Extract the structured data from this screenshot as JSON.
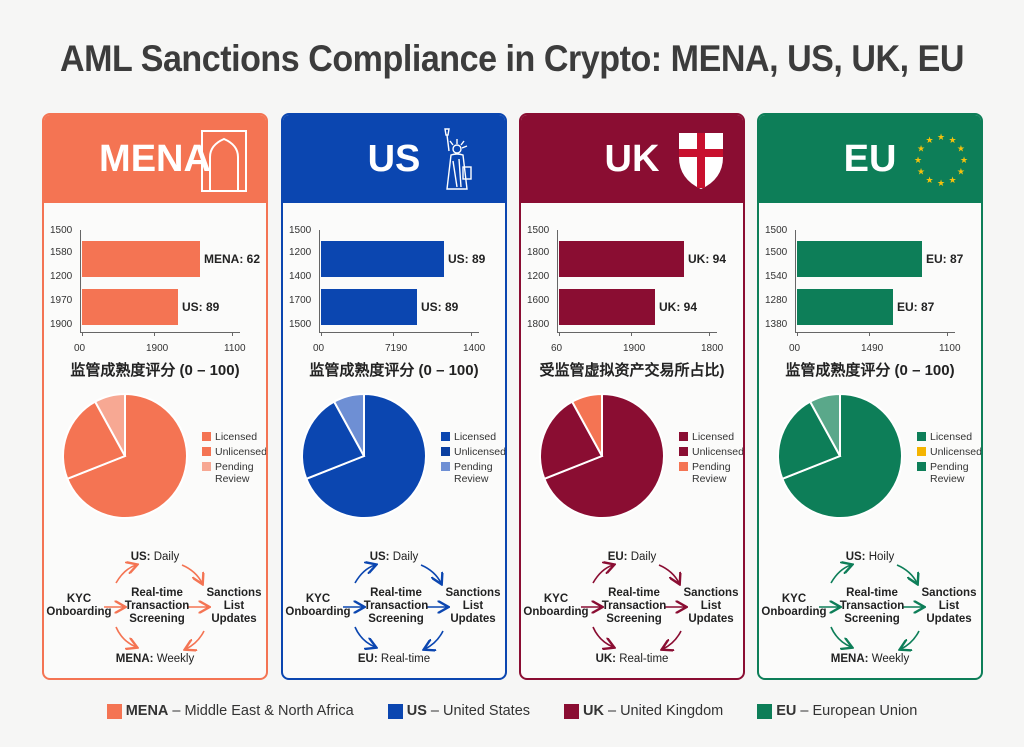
{
  "title": "AML Sanctions Compliance in Crypto: MENA, US, UK, EU",
  "colors": {
    "mena": "#f47453",
    "us": "#0b46b0",
    "uk": "#8a0d32",
    "eu": "#0d7e58"
  },
  "panels": [
    {
      "id": "mena",
      "name": "MENA",
      "icon": "arch-icon",
      "bar_chart": {
        "y_ticks": [
          "1500",
          "1580",
          "1200",
          "1970",
          "1900"
        ],
        "x_ticks": [
          "00",
          "1900",
          "1100"
        ],
        "bars": [
          {
            "label": "MENA: 62",
            "width_pct": 0.74
          },
          {
            "label": "US: 89",
            "width_pct": 0.6
          }
        ],
        "x_title": "监管成熟度评分 (0 – 100)"
      },
      "pie": {
        "legend": [
          "Licensed",
          "Unlicensed",
          "Pending Review"
        ],
        "legend_colors": [
          "#f47453",
          "#f47453",
          "#f7a893"
        ]
      },
      "flow": {
        "top_bold": "US:",
        "top_normal": "Daily",
        "left": "KYC Onboarding",
        "center": "Real-time Transaction Screening",
        "right": "Sanctions List Updates",
        "bottom_bold": "MENA:",
        "bottom_normal": "Weekly"
      }
    },
    {
      "id": "us",
      "name": "US",
      "icon": "statue-of-liberty-icon",
      "bar_chart": {
        "y_ticks": [
          "1500",
          "1200",
          "1400",
          "1700",
          "1500"
        ],
        "x_ticks": [
          "00",
          "7190",
          "1400"
        ],
        "bars": [
          {
            "label": "US: 89",
            "width_pct": 0.77
          },
          {
            "label": "US: 89",
            "width_pct": 0.6
          }
        ],
        "x_title": "监管成熟度评分 (0 – 100)"
      },
      "pie": {
        "legend": [
          "Licensed",
          "Unlicensed",
          "Pending Review"
        ],
        "legend_colors": [
          "#0b46b0",
          "#0b3fa0",
          "#6e8fd4"
        ]
      },
      "flow": {
        "top_bold": "US:",
        "top_normal": "Daily",
        "left": "KYC Onboarding",
        "center": "Real-time Transaction Screening",
        "right": "Sanctions List Updates",
        "bottom_bold": "EU:",
        "bottom_normal": "Real-time"
      }
    },
    {
      "id": "uk",
      "name": "UK",
      "icon": "st-george-shield-icon",
      "bar_chart": {
        "y_ticks": [
          "1500",
          "1800",
          "1200",
          "1600",
          "1800"
        ],
        "x_ticks": [
          "60",
          "1900",
          "1800"
        ],
        "bars": [
          {
            "label": "UK: 94",
            "width_pct": 0.78
          },
          {
            "label": "UK: 94",
            "width_pct": 0.6
          }
        ],
        "x_title": "受监管虚拟资产交易所占比)"
      },
      "pie": {
        "legend": [
          "Licensed",
          "Unlicensed",
          "Pending Review"
        ],
        "legend_colors": [
          "#8a0d32",
          "#8a0d32",
          "#f47453"
        ]
      },
      "flow": {
        "top_bold": "EU:",
        "top_normal": "Daily",
        "left": "KYC Onboarding",
        "center": "Real-time Transaction Screening",
        "right": "Sanctions List Updates",
        "bottom_bold": "UK:",
        "bottom_normal": "Real-time"
      }
    },
    {
      "id": "eu",
      "name": "EU",
      "icon": "eu-stars-icon",
      "bar_chart": {
        "y_ticks": [
          "1500",
          "1500",
          "1540",
          "1280",
          "1380"
        ],
        "x_ticks": [
          "00",
          "1490",
          "1100"
        ],
        "bars": [
          {
            "label": "EU: 87",
            "width_pct": 0.78
          },
          {
            "label": "EU: 87",
            "width_pct": 0.6
          }
        ],
        "x_title": "监管成熟度评分 (0 – 100)"
      },
      "pie": {
        "legend": [
          "Licensed",
          "Unlicensed",
          "Pending Review"
        ],
        "legend_colors": [
          "#0d7e58",
          "#f4b400",
          "#0d7e58"
        ]
      },
      "flow": {
        "top_bold": "US:",
        "top_normal": "Hoily",
        "left": "KYC Onboarding",
        "center": "Real-time Transaction Screening",
        "right": "Sanctions List Updates",
        "bottom_bold": "MENA:",
        "bottom_normal": "Weekly"
      }
    }
  ],
  "bottom_legend": [
    {
      "abbr": "MENA",
      "text": "– Middle East & North Africa",
      "color": "#f47453"
    },
    {
      "abbr": "US",
      "text": "– United States",
      "color": "#0b46b0"
    },
    {
      "abbr": "UK",
      "text": "– United Kingdom",
      "color": "#8a0d32"
    },
    {
      "abbr": "EU",
      "text": "– European Union",
      "color": "#0d7e58"
    }
  ],
  "chart_data": [
    {
      "type": "bar",
      "title": "MENA",
      "orientation": "horizontal",
      "categories": [
        "MENA",
        "US"
      ],
      "values": [
        62,
        89
      ],
      "data_labels": [
        "MENA: 62",
        "US: 89"
      ],
      "xlabel": "监管成熟度评分 (0 – 100)",
      "x_tick_labels": [
        "00",
        "1900",
        "1100"
      ],
      "y_tick_labels": [
        "1500",
        "1580",
        "1200",
        "1970",
        "1900"
      ]
    },
    {
      "type": "bar",
      "title": "US",
      "orientation": "horizontal",
      "categories": [
        "US",
        "US"
      ],
      "values": [
        89,
        89
      ],
      "data_labels": [
        "US: 89",
        "US: 89"
      ],
      "xlabel": "监管成熟度评分 (0 – 100)",
      "x_tick_labels": [
        "00",
        "7190",
        "1400"
      ],
      "y_tick_labels": [
        "1500",
        "1200",
        "1400",
        "1700",
        "1500"
      ]
    },
    {
      "type": "bar",
      "title": "UK",
      "orientation": "horizontal",
      "categories": [
        "UK",
        "UK"
      ],
      "values": [
        94,
        94
      ],
      "data_labels": [
        "UK: 94",
        "UK: 94"
      ],
      "xlabel": "受监管虚拟资产交易所占比)",
      "x_tick_labels": [
        "60",
        "1900",
        "1800"
      ],
      "y_tick_labels": [
        "1500",
        "1800",
        "1200",
        "1600",
        "1800"
      ]
    },
    {
      "type": "bar",
      "title": "EU",
      "orientation": "horizontal",
      "categories": [
        "EU",
        "EU"
      ],
      "values": [
        87,
        87
      ],
      "data_labels": [
        "EU: 87",
        "EU: 87"
      ],
      "xlabel": "监管成熟度评分 (0 – 100)",
      "x_tick_labels": [
        "00",
        "1490",
        "1100"
      ],
      "y_tick_labels": [
        "1500",
        "1500",
        "1540",
        "1280",
        "1380"
      ]
    },
    {
      "type": "pie",
      "title": "MENA exchange licensing",
      "categories": [
        "Licensed",
        "Unlicensed",
        "Pending Review"
      ],
      "values": [
        69,
        23,
        8
      ]
    },
    {
      "type": "pie",
      "title": "US exchange licensing",
      "categories": [
        "Licensed",
        "Unlicensed",
        "Pending Review"
      ],
      "values": [
        69,
        23,
        8
      ]
    },
    {
      "type": "pie",
      "title": "UK exchange licensing",
      "categories": [
        "Licensed",
        "Unlicensed",
        "Pending Review"
      ],
      "values": [
        69,
        23,
        8
      ]
    },
    {
      "type": "pie",
      "title": "EU exchange licensing",
      "categories": [
        "Licensed",
        "Unlicensed",
        "Pending Review"
      ],
      "values": [
        69,
        23,
        8
      ]
    }
  ]
}
